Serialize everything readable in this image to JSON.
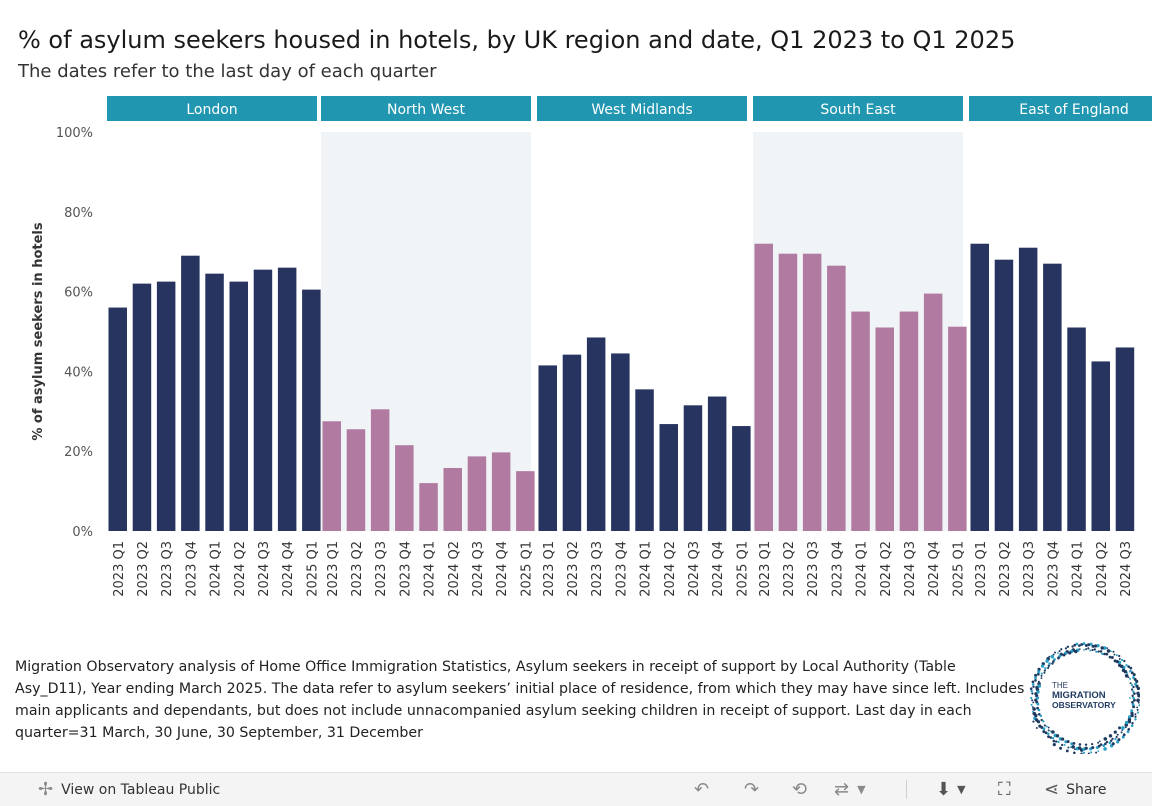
{
  "title": "% of asylum seekers housed in hotels, by UK region and date,  Q1 2023 to Q1 2025",
  "subtitle": "The dates refer to the last day of each quarter",
  "chart_data": {
    "type": "bar",
    "ylabel": "% of asylum seekers in hotels",
    "ylim": [
      0,
      100
    ],
    "yticks": [
      0,
      20,
      40,
      60,
      80,
      100
    ],
    "ytick_labels": [
      "0%",
      "20%",
      "40%",
      "60%",
      "80%",
      "100%"
    ],
    "panels": [
      {
        "region": "London",
        "color": "#26345f",
        "categories": [
          "2023 Q1",
          "2023 Q2",
          "2023 Q3",
          "2023 Q4",
          "2024 Q1",
          "2024 Q2",
          "2024 Q3",
          "2024 Q4",
          "2025 Q1"
        ],
        "values": [
          56,
          62,
          62.5,
          69,
          64.5,
          62.5,
          65.5,
          66,
          60.5
        ]
      },
      {
        "region": "North West",
        "color": "#b07aa1",
        "categories": [
          "2023 Q1",
          "2023 Q2",
          "2023 Q3",
          "2023 Q4",
          "2024 Q1",
          "2024 Q2",
          "2024 Q3",
          "2024 Q4",
          "2025 Q1"
        ],
        "values": [
          27.5,
          25.5,
          30.5,
          21.5,
          12,
          15.8,
          18.7,
          19.7,
          15
        ]
      },
      {
        "region": "West Midlands",
        "color": "#26345f",
        "categories": [
          "2023 Q1",
          "2023 Q2",
          "2023 Q3",
          "2023 Q4",
          "2024 Q1",
          "2024 Q2",
          "2024 Q3",
          "2024 Q4",
          "2025 Q1"
        ],
        "values": [
          41.5,
          44.2,
          48.5,
          44.5,
          35.5,
          26.8,
          31.5,
          33.7,
          26.3
        ]
      },
      {
        "region": "South East",
        "color": "#b07aa1",
        "categories": [
          "2023 Q1",
          "2023 Q2",
          "2023 Q3",
          "2023 Q4",
          "2024 Q1",
          "2024 Q2",
          "2024 Q3",
          "2024 Q4",
          "2025 Q1"
        ],
        "values": [
          72,
          69.5,
          69.5,
          66.5,
          55,
          51,
          55,
          59.5,
          51.2
        ]
      },
      {
        "region": "East of England",
        "color": "#26345f",
        "categories": [
          "2023 Q1",
          "2023 Q2",
          "2023 Q3",
          "2023 Q4",
          "2024 Q1",
          "2024 Q2",
          "2024 Q3"
        ],
        "values": [
          72,
          68,
          71,
          67,
          51,
          42.5,
          46
        ]
      }
    ]
  },
  "footnote": "Migration Observatory analysis of Home Office Immigration Statistics, Asylum seekers in receipt of support by Local Authority (Table Asy_D11), Year ending March 2025. The data refer to asylum seekers’ initial place of residence, from which they may have since left. Includes main applicants and dependants, but does not include unnacompanied asylum seeking children in receipt of support. Last day in each quarter=31 March, 30 June, 30 September, 31 December",
  "logo": {
    "line1": "THE",
    "line2": "MIGRATION",
    "line3": "OBSERVATORY"
  },
  "toolbar": {
    "view_label": "View on Tableau Public",
    "share_label": "Share"
  },
  "colors": {
    "header": "#2196b0",
    "navy": "#26345f",
    "mauve": "#b07aa1",
    "shade": "#f0f4f7"
  }
}
